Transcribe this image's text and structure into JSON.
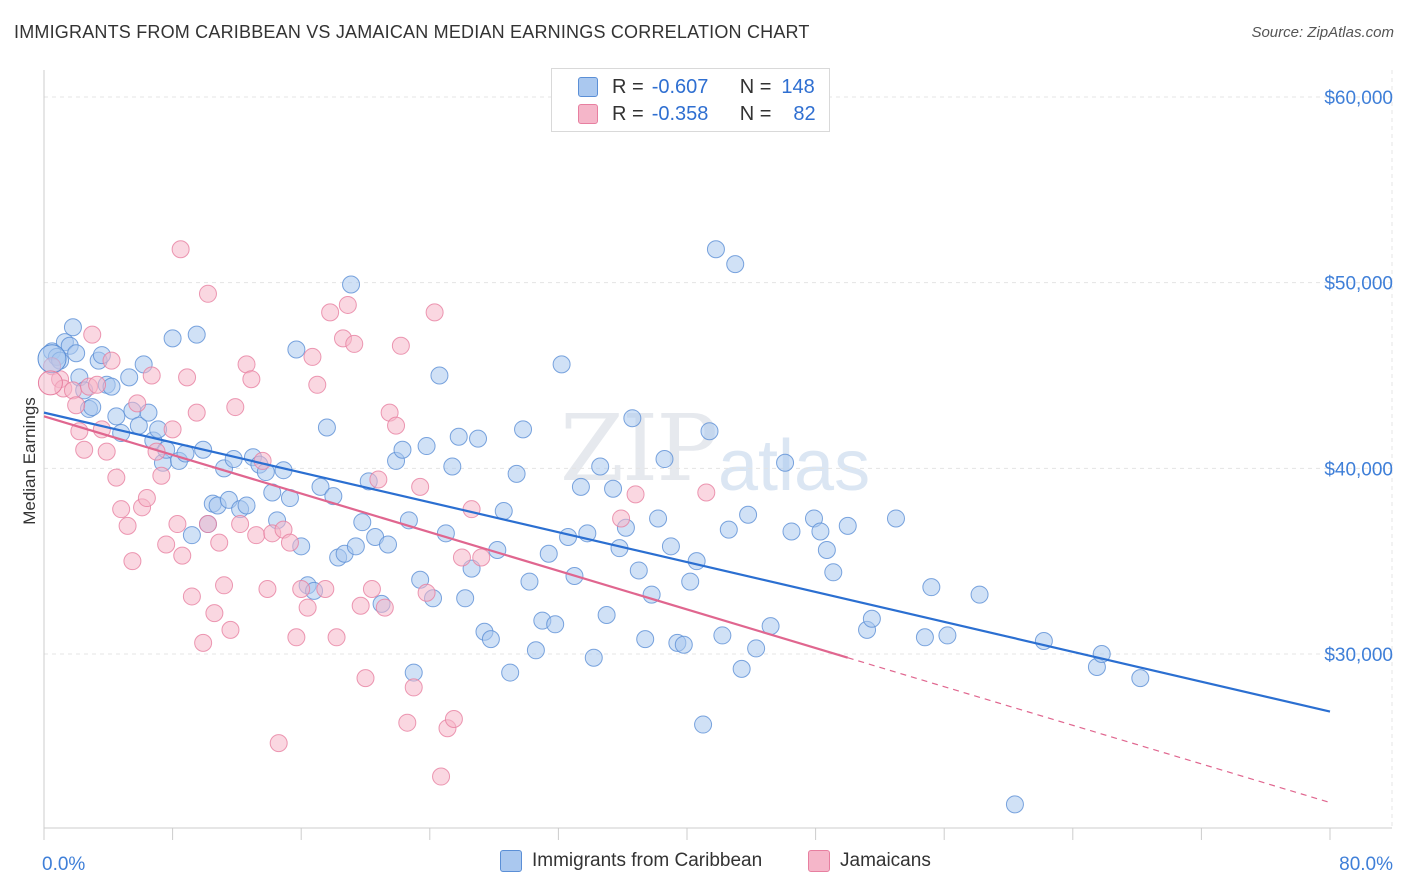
{
  "title": "IMMIGRANTS FROM CARIBBEAN VS JAMAICAN MEDIAN EARNINGS CORRELATION CHART",
  "source": "Source: ZipAtlas.com",
  "watermark": {
    "zip": "ZIP",
    "atlas": "atlas"
  },
  "legend": {
    "r_label": "R =",
    "n_label": "N =",
    "rows": [
      {
        "r": "-0.607",
        "n": "148"
      },
      {
        "r": "-0.358",
        "n": "82"
      }
    ]
  },
  "bottom_legend": [
    "Immigrants from Caribbean",
    "Jamaicans"
  ],
  "colors": {
    "blue_fill": "#aac8ef",
    "blue_stroke": "#5b8fd6",
    "blue_line": "#2b6fd1",
    "pink_fill": "#f5b6c9",
    "pink_stroke": "#e77fa0",
    "pink_line": "#e0668f",
    "grid": "#e4e4e4",
    "tick_text": "#3f7fd8"
  },
  "chart_data": {
    "type": "scatter",
    "title": "IMMIGRANTS FROM CARIBBEAN VS JAMAICAN MEDIAN EARNINGS CORRELATION CHART",
    "xlabel": "",
    "ylabel": "Median Earnings",
    "xlim": [
      0,
      80
    ],
    "ylim": [
      19000,
      62000
    ],
    "x_tick_labels": [
      "0.0%",
      "80.0%"
    ],
    "y_ticks": [
      30000,
      40000,
      50000,
      60000
    ],
    "y_tick_labels": [
      "$30,000",
      "$40,000",
      "$50,000",
      "$60,000"
    ],
    "grid": true,
    "legend_position": "top-center",
    "series": [
      {
        "name": "Immigrants from Caribbean",
        "r": -0.607,
        "n": 148,
        "trend": {
          "x": [
            0,
            80
          ],
          "y": [
            43000,
            26900
          ]
        },
        "points": [
          [
            0.5,
            46300
          ],
          [
            0.8,
            46000
          ],
          [
            1.0,
            45800
          ],
          [
            1.3,
            46800
          ],
          [
            1.6,
            46600
          ],
          [
            1.8,
            47600
          ],
          [
            2.0,
            46200
          ],
          [
            2.2,
            44900
          ],
          [
            2.5,
            44200
          ],
          [
            2.8,
            43200
          ],
          [
            3.0,
            43300
          ],
          [
            3.4,
            45800
          ],
          [
            3.6,
            46100
          ],
          [
            3.9,
            44500
          ],
          [
            4.2,
            44400
          ],
          [
            4.5,
            42800
          ],
          [
            4.8,
            41900
          ],
          [
            5.3,
            44900
          ],
          [
            5.5,
            43100
          ],
          [
            5.9,
            42300
          ],
          [
            6.2,
            45600
          ],
          [
            6.5,
            43000
          ],
          [
            6.8,
            41500
          ],
          [
            7.1,
            42100
          ],
          [
            7.4,
            40300
          ],
          [
            7.6,
            41000
          ],
          [
            8.0,
            47000
          ],
          [
            8.4,
            40400
          ],
          [
            8.8,
            40800
          ],
          [
            9.2,
            36400
          ],
          [
            9.5,
            47200
          ],
          [
            9.9,
            41000
          ],
          [
            10.2,
            37000
          ],
          [
            10.5,
            38100
          ],
          [
            10.8,
            38000
          ],
          [
            11.2,
            40000
          ],
          [
            11.5,
            38300
          ],
          [
            11.8,
            40500
          ],
          [
            12.2,
            37800
          ],
          [
            12.6,
            38000
          ],
          [
            13.0,
            40600
          ],
          [
            13.4,
            40200
          ],
          [
            13.8,
            39800
          ],
          [
            14.2,
            38700
          ],
          [
            14.5,
            37200
          ],
          [
            14.9,
            39900
          ],
          [
            15.3,
            38400
          ],
          [
            15.7,
            46400
          ],
          [
            16.0,
            35800
          ],
          [
            16.4,
            33700
          ],
          [
            16.8,
            33400
          ],
          [
            17.2,
            39000
          ],
          [
            17.6,
            42200
          ],
          [
            18.0,
            38500
          ],
          [
            18.3,
            35200
          ],
          [
            18.7,
            35400
          ],
          [
            19.1,
            49900
          ],
          [
            19.4,
            35800
          ],
          [
            19.8,
            37100
          ],
          [
            20.2,
            39300
          ],
          [
            20.6,
            36300
          ],
          [
            21.0,
            32700
          ],
          [
            21.4,
            35900
          ],
          [
            21.9,
            40400
          ],
          [
            22.3,
            41000
          ],
          [
            22.7,
            37200
          ],
          [
            23.0,
            29000
          ],
          [
            23.4,
            34000
          ],
          [
            23.8,
            41200
          ],
          [
            24.2,
            33000
          ],
          [
            24.6,
            45000
          ],
          [
            25.0,
            36500
          ],
          [
            25.4,
            40100
          ],
          [
            25.8,
            41700
          ],
          [
            26.2,
            33000
          ],
          [
            26.6,
            34600
          ],
          [
            27.0,
            41600
          ],
          [
            27.4,
            31200
          ],
          [
            27.8,
            30800
          ],
          [
            28.2,
            35600
          ],
          [
            28.6,
            37700
          ],
          [
            29.0,
            29000
          ],
          [
            29.4,
            39700
          ],
          [
            29.8,
            42100
          ],
          [
            30.2,
            33900
          ],
          [
            30.6,
            30200
          ],
          [
            31.0,
            31800
          ],
          [
            31.4,
            35400
          ],
          [
            31.8,
            31600
          ],
          [
            32.2,
            45600
          ],
          [
            32.6,
            36300
          ],
          [
            33.0,
            34200
          ],
          [
            33.4,
            39000
          ],
          [
            33.8,
            36500
          ],
          [
            34.2,
            29800
          ],
          [
            34.6,
            40100
          ],
          [
            35.0,
            32100
          ],
          [
            35.4,
            38900
          ],
          [
            35.8,
            35700
          ],
          [
            36.2,
            36800
          ],
          [
            36.6,
            42700
          ],
          [
            37.0,
            34500
          ],
          [
            37.4,
            30800
          ],
          [
            37.8,
            33200
          ],
          [
            38.2,
            37300
          ],
          [
            38.6,
            40500
          ],
          [
            39.0,
            35800
          ],
          [
            39.4,
            30600
          ],
          [
            39.8,
            30500
          ],
          [
            40.2,
            33900
          ],
          [
            40.6,
            35000
          ],
          [
            41.0,
            26200
          ],
          [
            41.4,
            42000
          ],
          [
            41.8,
            51800
          ],
          [
            42.2,
            31000
          ],
          [
            42.6,
            36700
          ],
          [
            43.0,
            51000
          ],
          [
            43.4,
            29200
          ],
          [
            43.8,
            37500
          ],
          [
            44.3,
            30300
          ],
          [
            45.2,
            31500
          ],
          [
            46.1,
            40300
          ],
          [
            46.5,
            36600
          ],
          [
            47.9,
            37300
          ],
          [
            48.3,
            36600
          ],
          [
            48.7,
            35600
          ],
          [
            49.1,
            34400
          ],
          [
            50.0,
            36900
          ],
          [
            51.2,
            31300
          ],
          [
            51.5,
            31900
          ],
          [
            53.0,
            37300
          ],
          [
            54.8,
            30900
          ],
          [
            55.2,
            33600
          ],
          [
            56.2,
            31000
          ],
          [
            58.2,
            33200
          ],
          [
            60.4,
            21900
          ],
          [
            62.2,
            30700
          ],
          [
            65.5,
            29300
          ],
          [
            65.8,
            30000
          ],
          [
            68.2,
            28700
          ]
        ]
      },
      {
        "name": "Jamaicans",
        "r": -0.358,
        "n": 82,
        "trend": {
          "x": [
            0,
            50
          ],
          "y": [
            42800,
            29800
          ]
        },
        "trend_dashed": {
          "x": [
            50,
            80
          ],
          "y": [
            29800,
            22000
          ]
        },
        "points": [
          [
            0.5,
            45500
          ],
          [
            1.0,
            44800
          ],
          [
            1.2,
            44300
          ],
          [
            1.8,
            44200
          ],
          [
            2.0,
            43400
          ],
          [
            2.2,
            42000
          ],
          [
            2.5,
            41000
          ],
          [
            2.8,
            44400
          ],
          [
            3.0,
            47200
          ],
          [
            3.3,
            44500
          ],
          [
            3.6,
            42100
          ],
          [
            3.9,
            40900
          ],
          [
            4.2,
            45800
          ],
          [
            4.5,
            39500
          ],
          [
            4.8,
            37800
          ],
          [
            5.2,
            36900
          ],
          [
            5.5,
            35000
          ],
          [
            5.8,
            43500
          ],
          [
            6.1,
            37900
          ],
          [
            6.4,
            38400
          ],
          [
            6.7,
            45000
          ],
          [
            7.0,
            40900
          ],
          [
            7.3,
            39600
          ],
          [
            7.6,
            35900
          ],
          [
            8.0,
            42100
          ],
          [
            8.3,
            37000
          ],
          [
            8.6,
            35300
          ],
          [
            8.9,
            44900
          ],
          [
            9.2,
            33100
          ],
          [
            9.5,
            43000
          ],
          [
            9.9,
            30600
          ],
          [
            10.2,
            37000
          ],
          [
            10.6,
            32200
          ],
          [
            10.9,
            36000
          ],
          [
            11.2,
            33700
          ],
          [
            11.6,
            31300
          ],
          [
            11.9,
            43300
          ],
          [
            12.2,
            37000
          ],
          [
            12.6,
            45600
          ],
          [
            12.9,
            44800
          ],
          [
            13.2,
            36400
          ],
          [
            13.6,
            40400
          ],
          [
            13.9,
            33500
          ],
          [
            14.2,
            36500
          ],
          [
            14.6,
            25200
          ],
          [
            14.9,
            36700
          ],
          [
            15.3,
            36000
          ],
          [
            15.7,
            30900
          ],
          [
            16.0,
            33500
          ],
          [
            16.4,
            32500
          ],
          [
            16.7,
            46000
          ],
          [
            17.0,
            44500
          ],
          [
            17.5,
            33500
          ],
          [
            17.8,
            48400
          ],
          [
            18.2,
            30900
          ],
          [
            18.6,
            47000
          ],
          [
            18.9,
            48800
          ],
          [
            19.3,
            46700
          ],
          [
            19.7,
            32600
          ],
          [
            20.0,
            28700
          ],
          [
            20.4,
            33500
          ],
          [
            20.8,
            39400
          ],
          [
            21.2,
            32500
          ],
          [
            21.5,
            43000
          ],
          [
            21.9,
            42300
          ],
          [
            22.2,
            46600
          ],
          [
            22.6,
            26300
          ],
          [
            23.0,
            28200
          ],
          [
            23.4,
            39000
          ],
          [
            23.8,
            33300
          ],
          [
            24.3,
            48400
          ],
          [
            24.7,
            23400
          ],
          [
            25.1,
            26000
          ],
          [
            25.5,
            26500
          ],
          [
            26.0,
            35200
          ],
          [
            26.6,
            37800
          ],
          [
            27.2,
            35200
          ],
          [
            35.9,
            37300
          ],
          [
            36.8,
            38600
          ],
          [
            41.2,
            38700
          ],
          [
            8.5,
            51800
          ],
          [
            10.2,
            49400
          ]
        ]
      }
    ]
  }
}
